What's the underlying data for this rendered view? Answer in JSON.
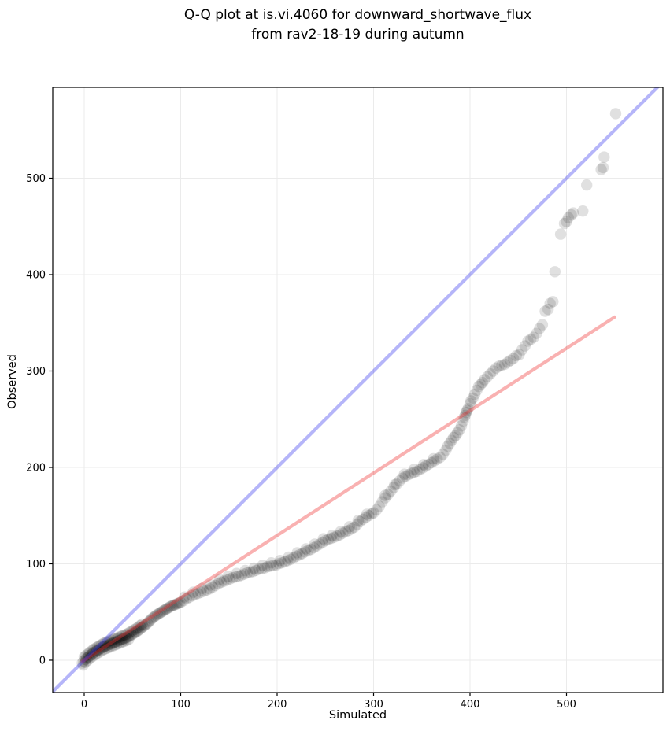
{
  "title": {
    "line1": "Q-Q plot at is.vi.4060 for downward_shortwave_flux",
    "line2": "from rav2-18-19 during autumn"
  },
  "chart_data": {
    "type": "scatter",
    "title": "Q-Q plot at is.vi.4060 for downward_shortwave_flux from rav2-18-19 during autumn",
    "xlabel": "Simulated",
    "ylabel": "Observed",
    "xlim": [
      -32.65,
      600
    ],
    "ylim": [
      -33.5,
      594.3
    ],
    "x_ticks": [
      0,
      100,
      200,
      300,
      400,
      500
    ],
    "y_ticks": [
      0,
      100,
      200,
      300,
      400,
      500
    ],
    "grid": true,
    "grid_color": "#ebebeb",
    "spine_color": "#000000",
    "legend": "none",
    "identity_line": {
      "name": "identity y=x",
      "color": "#3c3cf0",
      "alpha": 0.38,
      "width": 4.2,
      "points": [
        [
          -45,
          -45
        ],
        [
          620,
          620
        ]
      ]
    },
    "fit_line": {
      "name": "quantile fit",
      "color": "#f03232",
      "alpha": 0.38,
      "width": 4.2,
      "points": [
        [
          -2,
          -1.3
        ],
        [
          550,
          356
        ]
      ]
    },
    "points_style": {
      "color": "#000000",
      "alpha": 0.12,
      "radius_px": 7.2
    },
    "points": [
      [
        -2,
        -3
      ],
      [
        -1,
        -5
      ],
      [
        -0.5,
        -0.8
      ],
      [
        1,
        0.8
      ],
      [
        2.5,
        2
      ],
      [
        4,
        3.2
      ],
      [
        5.5,
        4.4
      ],
      [
        7,
        5.6
      ],
      [
        8.5,
        6.8
      ],
      [
        10,
        8
      ],
      [
        11.5,
        8.9
      ],
      [
        13,
        9.8
      ],
      [
        14.5,
        10.7
      ],
      [
        16,
        11.6
      ],
      [
        17.5,
        12.5
      ],
      [
        19,
        13.4
      ],
      [
        20.5,
        14.2
      ],
      [
        22,
        14.8
      ],
      [
        23.5,
        15.4
      ],
      [
        25,
        16
      ],
      [
        26.5,
        16.6
      ],
      [
        28,
        17.2
      ],
      [
        29.5,
        17.8
      ],
      [
        31,
        18.4
      ],
      [
        32.5,
        19
      ],
      [
        34,
        19.6
      ],
      [
        35.5,
        20.2
      ],
      [
        37,
        20.8
      ],
      [
        38.5,
        21.4
      ],
      [
        40,
        22
      ],
      [
        41.5,
        22.6
      ],
      [
        43,
        23.2
      ],
      [
        44.5,
        23.8
      ],
      [
        46,
        24.6
      ],
      [
        47.5,
        25.5
      ],
      [
        49,
        26.4
      ],
      [
        50.5,
        27.3
      ],
      [
        52,
        28.2
      ],
      [
        53.5,
        29.1
      ],
      [
        55,
        30
      ],
      [
        56.5,
        31.2
      ],
      [
        58,
        32.4
      ],
      [
        59.5,
        33.6
      ],
      [
        61,
        34.8
      ],
      [
        62.5,
        36
      ],
      [
        64,
        37.2
      ],
      [
        65.5,
        38.5
      ],
      [
        67,
        40
      ],
      [
        68.5,
        41.5
      ],
      [
        70,
        43
      ],
      [
        71.5,
        44.2
      ],
      [
        73,
        45.4
      ],
      [
        74.5,
        46.6
      ],
      [
        76,
        47.6
      ],
      [
        77.5,
        48.5
      ],
      [
        79,
        49.4
      ],
      [
        80.5,
        50.3
      ],
      [
        82,
        51.2
      ],
      [
        83.5,
        52.1
      ],
      [
        85,
        53
      ],
      [
        86.5,
        53.9
      ],
      [
        88,
        54.8
      ],
      [
        89.5,
        55.7
      ],
      [
        91,
        56.4
      ],
      [
        92.5,
        57
      ],
      [
        94,
        57.6
      ],
      [
        95.5,
        58.2
      ],
      [
        97,
        58.8
      ],
      [
        98.5,
        59.4
      ],
      [
        100,
        60
      ],
      [
        0,
        3.5
      ],
      [
        2,
        5.1
      ],
      [
        4,
        6.7
      ],
      [
        6,
        8.3
      ],
      [
        8,
        9.9
      ],
      [
        10,
        11.5
      ],
      [
        12,
        12.7
      ],
      [
        14,
        13.9
      ],
      [
        16,
        15.1
      ],
      [
        18,
        16.3
      ],
      [
        20,
        17.5
      ],
      [
        22,
        18.3
      ],
      [
        24,
        19.1
      ],
      [
        26,
        19.9
      ],
      [
        28,
        20.7
      ],
      [
        30,
        21.5
      ],
      [
        32,
        22.3
      ],
      [
        34,
        23.1
      ],
      [
        36,
        23.9
      ],
      [
        38,
        24.7
      ],
      [
        40,
        25.5
      ],
      [
        42,
        26.3
      ],
      [
        44,
        27.1
      ],
      [
        46,
        28.1
      ],
      [
        48,
        29.3
      ],
      [
        50,
        30.5
      ],
      [
        52,
        31.7
      ],
      [
        54,
        32.9
      ],
      [
        56,
        34.3
      ],
      [
        58,
        35.9
      ],
      [
        60,
        37.5
      ],
      [
        1,
        -2.2
      ],
      [
        3.5,
        -0.2
      ],
      [
        6,
        1.8
      ],
      [
        8.5,
        3.8
      ],
      [
        11,
        5.6
      ],
      [
        13.5,
        7.1
      ],
      [
        16,
        8.6
      ],
      [
        18.5,
        10.1
      ],
      [
        21,
        11.4
      ],
      [
        23.5,
        12.4
      ],
      [
        26,
        13.4
      ],
      [
        28.5,
        14.4
      ],
      [
        31,
        15.4
      ],
      [
        33.5,
        16.4
      ],
      [
        36,
        17.4
      ],
      [
        38.5,
        18.4
      ],
      [
        41,
        19.4
      ],
      [
        43.5,
        20.4
      ],
      [
        46,
        21.6
      ],
      [
        103,
        61.8
      ],
      [
        106,
        63.6
      ],
      [
        109,
        65.4
      ],
      [
        112,
        66.8
      ],
      [
        115,
        68
      ],
      [
        118,
        69.2
      ],
      [
        121,
        70.4
      ],
      [
        124,
        71.6
      ],
      [
        127,
        72.8
      ],
      [
        130,
        74
      ],
      [
        133,
        75.8
      ],
      [
        136,
        77.6
      ],
      [
        139,
        79.4
      ],
      [
        142,
        80.8
      ],
      [
        145,
        82
      ],
      [
        148,
        83.2
      ],
      [
        151,
        84.4
      ],
      [
        154,
        85.6
      ],
      [
        157,
        86.4
      ],
      [
        160,
        87
      ],
      [
        163,
        88.2
      ],
      [
        166,
        89.4
      ],
      [
        169,
        90.6
      ],
      [
        172,
        91.4
      ],
      [
        175,
        92
      ],
      [
        178,
        93.2
      ],
      [
        181,
        94.4
      ],
      [
        184,
        94.8
      ],
      [
        187,
        95.8
      ],
      [
        190,
        97
      ],
      [
        193,
        97.6
      ],
      [
        196,
        98.2
      ],
      [
        199,
        98.8
      ],
      [
        202,
        100.2
      ],
      [
        205,
        101
      ],
      [
        208,
        102.2
      ],
      [
        211,
        103.4
      ],
      [
        214,
        104.6
      ],
      [
        217,
        106.2
      ],
      [
        220,
        108
      ],
      [
        223,
        109.2
      ],
      [
        226,
        110.6
      ],
      [
        229,
        112.4
      ],
      [
        232,
        113.8
      ],
      [
        235,
        115
      ],
      [
        238,
        116.8
      ],
      [
        241,
        118.6
      ],
      [
        244,
        120.4
      ],
      [
        247,
        122.2
      ],
      [
        250,
        124
      ],
      [
        253,
        125.2
      ],
      [
        256,
        126.4
      ],
      [
        259,
        127.6
      ],
      [
        262,
        128.8
      ],
      [
        265,
        130
      ],
      [
        268,
        131.8
      ],
      [
        271,
        133.4
      ],
      [
        274,
        134.6
      ],
      [
        277,
        136.2
      ],
      [
        280,
        138
      ],
      [
        283,
        141
      ],
      [
        286,
        143.8
      ],
      [
        289,
        146.2
      ],
      [
        292,
        148.2
      ],
      [
        295,
        150
      ],
      [
        298,
        151.8
      ],
      [
        104,
        65.5
      ],
      [
        113,
        70.5
      ],
      [
        122,
        74.5
      ],
      [
        131,
        78
      ],
      [
        140,
        83.5
      ],
      [
        149,
        87
      ],
      [
        158,
        90
      ],
      [
        167,
        93
      ],
      [
        176,
        95.5
      ],
      [
        185,
        98.5
      ],
      [
        194,
        101
      ],
      [
        203,
        103.5
      ],
      [
        212,
        107
      ],
      [
        221,
        111.5
      ],
      [
        230,
        115.5
      ],
      [
        239,
        120.5
      ],
      [
        248,
        126
      ],
      [
        257,
        129.5
      ],
      [
        266,
        133.5
      ],
      [
        275,
        138.5
      ],
      [
        284,
        145
      ],
      [
        293,
        151.5
      ],
      [
        300,
        153
      ],
      [
        303,
        156
      ],
      [
        306,
        159.6
      ],
      [
        309,
        164.4
      ],
      [
        312,
        168.4
      ],
      [
        315,
        172
      ],
      [
        318,
        175.6
      ],
      [
        321,
        179.2
      ],
      [
        324,
        182.8
      ],
      [
        327,
        186
      ],
      [
        330,
        189
      ],
      [
        333,
        190.8
      ],
      [
        336,
        192.4
      ],
      [
        339,
        193.8
      ],
      [
        342,
        194.8
      ],
      [
        345,
        196
      ],
      [
        348,
        197.8
      ],
      [
        351,
        199.6
      ],
      [
        354,
        201.4
      ],
      [
        357,
        203.2
      ],
      [
        360,
        205
      ],
      [
        363,
        206.8
      ],
      [
        366,
        208.6
      ],
      [
        369,
        210.4
      ],
      [
        372,
        213.8
      ],
      [
        312,
        171
      ],
      [
        322,
        182
      ],
      [
        332,
        193
      ],
      [
        342,
        198
      ],
      [
        352,
        203
      ],
      [
        362,
        209
      ],
      [
        375,
        218
      ],
      [
        377,
        222
      ],
      [
        379,
        225
      ],
      [
        381,
        228
      ],
      [
        383,
        231
      ],
      [
        385,
        233
      ],
      [
        387,
        236
      ],
      [
        389,
        239
      ],
      [
        391,
        243
      ],
      [
        393,
        248
      ],
      [
        394,
        252
      ],
      [
        395,
        254
      ],
      [
        396,
        257
      ],
      [
        397,
        259
      ],
      [
        398,
        261
      ],
      [
        400,
        266
      ],
      [
        401,
        269
      ],
      [
        403,
        272
      ],
      [
        405,
        276
      ],
      [
        407,
        280
      ],
      [
        409,
        284
      ],
      [
        411,
        286
      ],
      [
        413,
        288
      ],
      [
        415,
        291
      ],
      [
        418,
        294
      ],
      [
        421,
        297
      ],
      [
        424,
        300
      ],
      [
        427,
        303
      ],
      [
        430,
        305
      ],
      [
        433,
        306
      ],
      [
        436,
        307
      ],
      [
        439,
        309
      ],
      [
        442,
        311
      ],
      [
        445,
        313
      ],
      [
        448,
        316
      ],
      [
        451,
        317
      ],
      [
        454,
        322
      ],
      [
        457,
        326
      ],
      [
        460,
        331
      ],
      [
        463,
        333
      ],
      [
        466,
        335
      ],
      [
        469,
        339
      ],
      [
        472,
        344
      ],
      [
        475,
        348
      ],
      [
        478,
        362
      ],
      [
        481,
        364
      ],
      [
        483,
        370
      ],
      [
        486,
        372
      ],
      [
        488,
        403
      ],
      [
        494,
        442
      ],
      [
        498,
        453
      ],
      [
        500,
        455
      ],
      [
        502,
        459
      ],
      [
        505,
        462
      ],
      [
        507,
        464
      ],
      [
        517,
        466
      ],
      [
        521,
        493
      ],
      [
        536,
        509
      ],
      [
        538,
        511
      ],
      [
        539,
        522
      ],
      [
        551,
        567
      ]
    ]
  }
}
